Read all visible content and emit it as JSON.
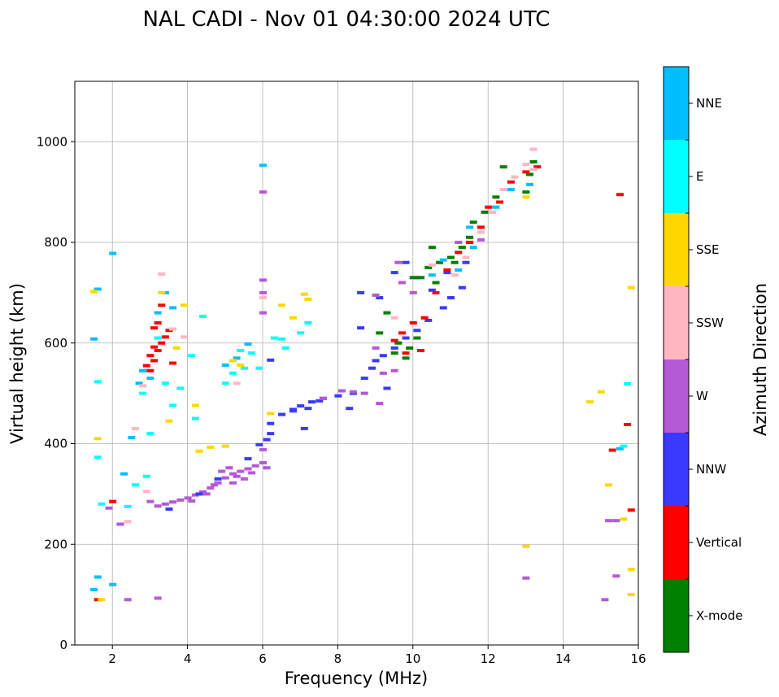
{
  "chart_data": {
    "type": "scatter",
    "title": "NAL CADI - Nov 01 04:30:00 2024 UTC",
    "xlabel": "Frequency (MHz)",
    "ylabel": "Virtual height (km)",
    "xlim": [
      1,
      16
    ],
    "ylim": [
      0,
      1120
    ],
    "xticks": [
      2,
      4,
      6,
      8,
      10,
      12,
      14,
      16
    ],
    "yticks": [
      0,
      200,
      400,
      600,
      800,
      1000
    ],
    "grid": true,
    "colorbar": {
      "label": "Azimuth Direction",
      "categories": [
        {
          "name": "X-mode",
          "color": "#008000"
        },
        {
          "name": "Vertical",
          "color": "#ff0000"
        },
        {
          "name": "NNW",
          "color": "#3a3aff"
        },
        {
          "name": "W",
          "color": "#b45ad6"
        },
        {
          "name": "SSW",
          "color": "#ffb6c1"
        },
        {
          "name": "SSE",
          "color": "#ffd700"
        },
        {
          "name": "E",
          "color": "#00ffff"
        },
        {
          "name": "NNE",
          "color": "#00bfff"
        }
      ]
    },
    "series": [
      {
        "name": "W-lower-trace",
        "azimuth": "W",
        "points": [
          [
            3.2,
            276
          ],
          [
            3.4,
            280
          ],
          [
            3.6,
            284
          ],
          [
            3.8,
            288
          ],
          [
            4.0,
            292
          ],
          [
            4.2,
            298
          ],
          [
            4.4,
            304
          ],
          [
            4.6,
            312
          ],
          [
            4.8,
            322
          ],
          [
            5.0,
            332
          ],
          [
            5.2,
            340
          ],
          [
            5.4,
            345
          ],
          [
            5.6,
            350
          ],
          [
            5.8,
            356
          ],
          [
            6.0,
            362
          ],
          [
            6.1,
            352
          ],
          [
            4.9,
            345
          ],
          [
            5.1,
            352
          ],
          [
            5.3,
            335
          ],
          [
            4.5,
            300
          ],
          [
            4.1,
            286
          ],
          [
            5.5,
            330
          ],
          [
            5.7,
            342
          ],
          [
            4.7,
            318
          ],
          [
            5.2,
            322
          ],
          [
            6.0,
            388
          ]
        ]
      },
      {
        "name": "NNW-lower-trace",
        "azimuth": "NNW",
        "points": [
          [
            3.5,
            270
          ],
          [
            4.3,
            300
          ],
          [
            4.8,
            330
          ],
          [
            5.6,
            370
          ],
          [
            5.9,
            398
          ],
          [
            6.1,
            408
          ],
          [
            6.2,
            420
          ],
          [
            6.2,
            566
          ]
        ]
      },
      {
        "name": "NNW-oblique",
        "azimuth": "NNW",
        "points": [
          [
            6.2,
            440
          ],
          [
            6.5,
            458
          ],
          [
            6.8,
            468
          ],
          [
            7.0,
            475
          ],
          [
            7.3,
            483
          ],
          [
            7.6,
            490
          ],
          [
            8.0,
            495
          ],
          [
            8.4,
            500
          ],
          [
            8.7,
            530
          ],
          [
            8.9,
            550
          ],
          [
            9.0,
            565
          ],
          [
            9.2,
            575
          ],
          [
            9.5,
            590
          ],
          [
            9.8,
            610
          ],
          [
            10.1,
            625
          ],
          [
            10.4,
            645
          ],
          [
            10.8,
            670
          ],
          [
            11.0,
            690
          ],
          [
            11.3,
            710
          ],
          [
            7.5,
            485
          ],
          [
            8.3,
            470
          ],
          [
            8.6,
            630
          ],
          [
            8.6,
            700
          ],
          [
            9.1,
            690
          ],
          [
            9.3,
            510
          ],
          [
            9.5,
            740
          ],
          [
            9.8,
            760
          ],
          [
            10.1,
            730
          ],
          [
            10.5,
            705
          ],
          [
            10.9,
            740
          ],
          [
            11.4,
            760
          ],
          [
            6.8,
            465
          ],
          [
            7.1,
            430
          ],
          [
            7.2,
            470
          ]
        ]
      },
      {
        "name": "W-oblique",
        "azimuth": "W",
        "points": [
          [
            6.0,
            660
          ],
          [
            6.0,
            700
          ],
          [
            6.0,
            725
          ],
          [
            6.0,
            900
          ],
          [
            7.6,
            490
          ],
          [
            8.1,
            505
          ],
          [
            8.4,
            503
          ],
          [
            8.7,
            500
          ],
          [
            9.0,
            590
          ],
          [
            9.2,
            540
          ],
          [
            9.5,
            545
          ],
          [
            9.7,
            720
          ],
          [
            10.0,
            700
          ],
          [
            11.2,
            800
          ],
          [
            11.8,
            805
          ],
          [
            9.1,
            480
          ],
          [
            9.0,
            695
          ],
          [
            9.6,
            760
          ]
        ]
      },
      {
        "name": "X-mode-F2",
        "azimuth": "X-mode",
        "points": [
          [
            9.1,
            620
          ],
          [
            9.3,
            660
          ],
          [
            9.5,
            580
          ],
          [
            9.6,
            600
          ],
          [
            9.8,
            570
          ],
          [
            9.9,
            590
          ],
          [
            10.1,
            610
          ],
          [
            10.2,
            730
          ],
          [
            10.4,
            750
          ],
          [
            10.6,
            720
          ],
          [
            10.7,
            760
          ],
          [
            11.0,
            770
          ],
          [
            11.3,
            790
          ],
          [
            11.5,
            810
          ],
          [
            11.6,
            840
          ],
          [
            11.9,
            860
          ],
          [
            12.2,
            890
          ],
          [
            12.4,
            950
          ],
          [
            13.2,
            960
          ],
          [
            13.1,
            935
          ],
          [
            13.0,
            900
          ],
          [
            10.0,
            730
          ],
          [
            10.5,
            790
          ],
          [
            11.1,
            760
          ]
        ]
      },
      {
        "name": "Vertical-F2",
        "azimuth": "Vertical",
        "points": [
          [
            9.5,
            605
          ],
          [
            9.7,
            620
          ],
          [
            10.0,
            640
          ],
          [
            10.3,
            650
          ],
          [
            10.6,
            700
          ],
          [
            10.9,
            745
          ],
          [
            11.2,
            780
          ],
          [
            11.5,
            800
          ],
          [
            11.8,
            830
          ],
          [
            12.0,
            870
          ],
          [
            12.3,
            880
          ],
          [
            12.6,
            920
          ],
          [
            13.0,
            940
          ],
          [
            13.3,
            950
          ],
          [
            9.8,
            580
          ],
          [
            10.2,
            585
          ]
        ]
      },
      {
        "name": "SSW-F2",
        "azimuth": "SSW",
        "points": [
          [
            11.1,
            735
          ],
          [
            11.4,
            770
          ],
          [
            11.8,
            820
          ],
          [
            12.1,
            860
          ],
          [
            12.4,
            905
          ],
          [
            12.7,
            930
          ],
          [
            13.0,
            955
          ],
          [
            13.2,
            945
          ],
          [
            10.5,
            755
          ]
        ]
      },
      {
        "name": "NNE-F2",
        "azimuth": "NNE",
        "points": [
          [
            10.8,
            765
          ],
          [
            11.2,
            745
          ],
          [
            11.6,
            790
          ],
          [
            12.2,
            870
          ],
          [
            12.6,
            905
          ],
          [
            13.1,
            915
          ],
          [
            10.5,
            735
          ],
          [
            11.5,
            830
          ]
        ]
      },
      {
        "name": "Vertical-lowfreq",
        "azimuth": "Vertical",
        "points": [
          [
            3.0,
            545
          ],
          [
            3.1,
            565
          ],
          [
            3.2,
            585
          ],
          [
            3.3,
            600
          ],
          [
            3.4,
            612
          ],
          [
            3.5,
            625
          ],
          [
            3.1,
            630
          ],
          [
            2.9,
            555
          ],
          [
            3.0,
            575
          ],
          [
            3.2,
            640
          ],
          [
            3.6,
            560
          ],
          [
            3.3,
            675
          ],
          [
            1.6,
            90
          ],
          [
            2.0,
            285
          ],
          [
            15.5,
            895
          ],
          [
            15.7,
            438
          ],
          [
            15.8,
            268
          ],
          [
            15.3,
            387
          ],
          [
            3.1,
            592
          ]
        ]
      },
      {
        "name": "NNE-lowfreq",
        "azimuth": "NNE",
        "points": [
          [
            1.5,
            110
          ],
          [
            1.6,
            135
          ],
          [
            1.5,
            608
          ],
          [
            1.6,
            707
          ],
          [
            2.0,
            778
          ],
          [
            2.0,
            120
          ],
          [
            2.3,
            340
          ],
          [
            2.5,
            412
          ],
          [
            2.7,
            520
          ],
          [
            2.8,
            545
          ],
          [
            3.0,
            530
          ],
          [
            3.2,
            660
          ],
          [
            3.4,
            700
          ],
          [
            3.6,
            670
          ],
          [
            2.8,
            545
          ],
          [
            5.0,
            556
          ],
          [
            5.3,
            570
          ],
          [
            5.6,
            598
          ],
          [
            6.0,
            953
          ],
          [
            15.5,
            390
          ]
        ]
      },
      {
        "name": "E-lowfreq",
        "azimuth": "E",
        "points": [
          [
            1.6,
            523
          ],
          [
            1.6,
            373
          ],
          [
            1.7,
            280
          ],
          [
            2.4,
            275
          ],
          [
            2.6,
            318
          ],
          [
            2.9,
            335
          ],
          [
            3.2,
            610
          ],
          [
            3.4,
            520
          ],
          [
            3.6,
            476
          ],
          [
            3.8,
            510
          ],
          [
            4.1,
            575
          ],
          [
            4.2,
            450
          ],
          [
            4.4,
            653
          ],
          [
            5.0,
            520
          ],
          [
            5.2,
            540
          ],
          [
            5.4,
            585
          ],
          [
            5.5,
            550
          ],
          [
            5.7,
            580
          ],
          [
            5.9,
            550
          ],
          [
            6.3,
            610
          ],
          [
            6.5,
            608
          ],
          [
            6.6,
            590
          ],
          [
            7.0,
            620
          ],
          [
            7.2,
            640
          ],
          [
            15.7,
            519
          ],
          [
            15.6,
            395
          ],
          [
            2.8,
            500
          ],
          [
            3.0,
            420
          ]
        ]
      },
      {
        "name": "SSE-lowfreq",
        "azimuth": "SSE",
        "points": [
          [
            1.5,
            702
          ],
          [
            1.6,
            410
          ],
          [
            1.7,
            90
          ],
          [
            3.3,
            700
          ],
          [
            3.5,
            445
          ],
          [
            3.7,
            590
          ],
          [
            3.9,
            675
          ],
          [
            4.2,
            476
          ],
          [
            4.3,
            385
          ],
          [
            4.6,
            393
          ],
          [
            5.0,
            395
          ],
          [
            5.4,
            556
          ],
          [
            6.5,
            675
          ],
          [
            6.8,
            650
          ],
          [
            7.1,
            697
          ],
          [
            7.2,
            687
          ],
          [
            6.2,
            460
          ],
          [
            15.8,
            710
          ],
          [
            14.7,
            483
          ],
          [
            15.0,
            503
          ],
          [
            15.2,
            318
          ],
          [
            15.6,
            250
          ],
          [
            15.8,
            150
          ],
          [
            15.8,
            100
          ],
          [
            13.0,
            890
          ],
          [
            13.0,
            196
          ],
          [
            5.2,
            565
          ]
        ]
      },
      {
        "name": "SSW-lowfreq",
        "azimuth": "SSW",
        "points": [
          [
            2.4,
            245
          ],
          [
            2.6,
            430
          ],
          [
            2.8,
            515
          ],
          [
            2.9,
            305
          ],
          [
            3.3,
            737
          ],
          [
            3.6,
            628
          ],
          [
            3.9,
            612
          ],
          [
            5.3,
            520
          ],
          [
            6.0,
            690
          ],
          [
            13.2,
            985
          ],
          [
            9.5,
            650
          ]
        ]
      },
      {
        "name": "W-far",
        "azimuth": "W",
        "points": [
          [
            1.9,
            272
          ],
          [
            2.2,
            240
          ],
          [
            3.0,
            285
          ],
          [
            3.2,
            93
          ],
          [
            2.4,
            90
          ],
          [
            15.2,
            247
          ],
          [
            15.4,
            137
          ],
          [
            15.1,
            90
          ],
          [
            13.0,
            133
          ],
          [
            15.4,
            247
          ]
        ]
      }
    ]
  }
}
